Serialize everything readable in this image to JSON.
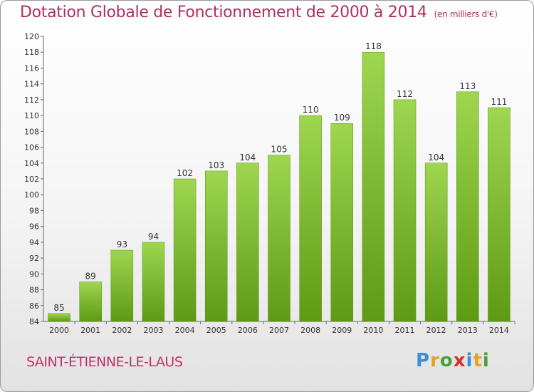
{
  "title": "Dotation Globale de Fonctionnement de 2000 à 2014",
  "subtitle": "(en milliers d'€)",
  "commune": "SAINT-ÉTIENNE-LE-LAUS",
  "logo": "Proxiti",
  "chart_data": {
    "type": "bar",
    "title": "Dotation Globale de Fonctionnement de 2000 à 2014",
    "subtitle": "(en milliers d'€)",
    "categories": [
      "2000",
      "2001",
      "2002",
      "2003",
      "2004",
      "2005",
      "2006",
      "2007",
      "2008",
      "2009",
      "2010",
      "2011",
      "2012",
      "2013",
      "2014"
    ],
    "values": [
      85,
      89,
      93,
      94,
      102,
      103,
      104,
      105,
      110,
      109,
      118,
      112,
      104,
      113,
      111
    ],
    "ylim": [
      84,
      120
    ],
    "yticks": [
      84,
      86,
      88,
      90,
      92,
      94,
      96,
      98,
      100,
      102,
      104,
      106,
      108,
      110,
      112,
      114,
      116,
      118,
      120
    ],
    "grid": false,
    "bar_color": "#7dbb2f",
    "title_color": "#b03060"
  }
}
